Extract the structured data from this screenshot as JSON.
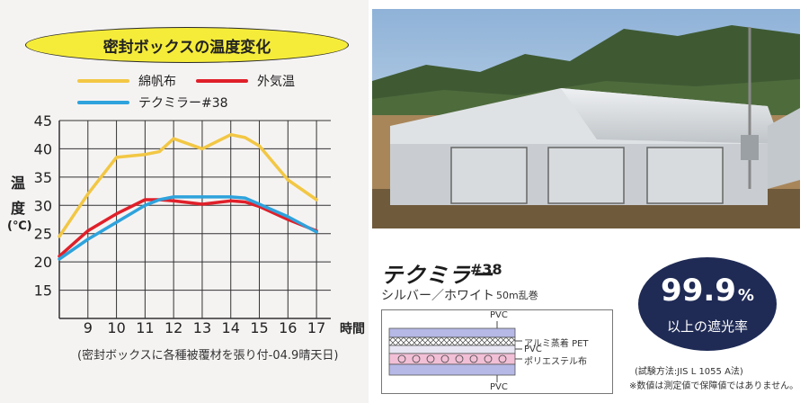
{
  "left": {
    "title": "密封ボックスの温度変化",
    "ylabel_chars": [
      "温",
      "度",
      "(℃)"
    ],
    "caption": "(密封ボックスに各種被覆材を張り付-04.9晴天日)"
  },
  "colors": {
    "cotton": "#f2c744",
    "outside": "#e0202a",
    "tekumira": "#2ea3dc",
    "badge": "#1f2b55",
    "pill": "#f5ec3a"
  },
  "chart_data": {
    "type": "line",
    "title": "密封ボックスの温度変化",
    "xlabel": "時間",
    "ylabel": "温度(℃)",
    "x": [
      8,
      9,
      10,
      11,
      11.5,
      12,
      13,
      14,
      14.5,
      15,
      16,
      17
    ],
    "x_ticks": [
      "9",
      "10",
      "11",
      "12",
      "13",
      "14",
      "15",
      "16",
      "17"
    ],
    "x_tick_values": [
      9,
      10,
      11,
      12,
      13,
      14,
      15,
      16,
      17
    ],
    "y_ticks": [
      15,
      20,
      25,
      30,
      35,
      40,
      45
    ],
    "xlim": [
      8,
      17.5
    ],
    "ylim": [
      10,
      45
    ],
    "grid": true,
    "legend_position": "top-left",
    "series": [
      {
        "name": "綿帆布",
        "color_key": "cotton",
        "values": [
          24.5,
          32,
          38.5,
          39,
          39.5,
          41.8,
          40,
          42.5,
          42,
          40.5,
          34.5,
          31
        ]
      },
      {
        "name": "外気温",
        "color_key": "outside",
        "values": [
          21,
          25.5,
          28.5,
          31,
          31,
          30.8,
          30.2,
          30.8,
          30.6,
          29.8,
          27.5,
          25.5
        ]
      },
      {
        "name": "テクミラー#38",
        "color_key": "tekumira",
        "values": [
          20.5,
          24,
          27,
          30,
          31,
          31.5,
          31.5,
          31.5,
          31.3,
          30.2,
          28,
          25.3
        ]
      }
    ]
  },
  "product": {
    "logo": "テクミラー",
    "number": "#38",
    "subtitle": "シルバー／ホワイト",
    "roll": "50m乱巻"
  },
  "badge": {
    "value": "99.9",
    "unit": "%",
    "text": "以上の遮光率"
  },
  "layers": {
    "top_label": "PVC",
    "bottom_label": "PVC",
    "right_labels": [
      "アルミ蒸着 PET",
      "PVC",
      "ポリエステル布"
    ]
  },
  "notes": {
    "test_method": "(試験方法:JIS L 1055 A法)",
    "disclaimer": "※数値は測定値で保障値ではありません。"
  }
}
